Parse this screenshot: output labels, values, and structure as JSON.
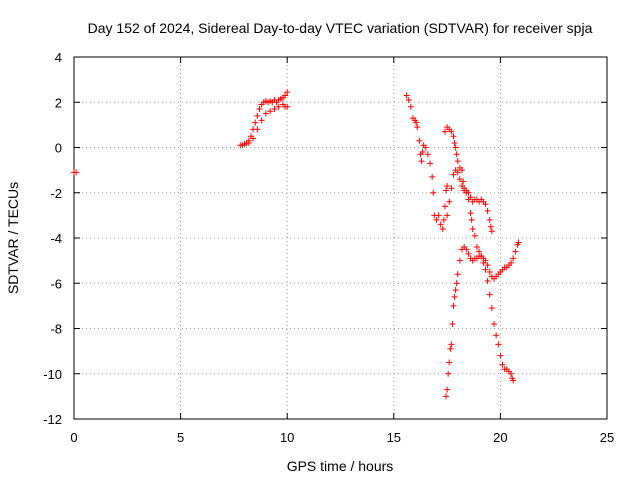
{
  "chart_data": {
    "type": "scatter",
    "title": "Day 152 of 2024, Sidereal Day-to-day VTEC variation (SDTVAR) for receiver spja",
    "xlabel": "GPS time / hours",
    "ylabel": "SDTVAR / TECUs",
    "xlim": [
      0,
      25
    ],
    "ylim": [
      -12,
      4
    ],
    "xticks": [
      0,
      5,
      10,
      15,
      20,
      25
    ],
    "yticks": [
      -12,
      -10,
      -8,
      -6,
      -4,
      -2,
      0,
      2,
      4
    ],
    "grid": true,
    "marker": "+",
    "colors": {
      "series": "#ff0000",
      "axes": "#000000",
      "grid": "#a0a0a0"
    },
    "series": [
      {
        "name": "SDTVAR",
        "points": [
          [
            0.0,
            -1.1
          ],
          [
            0.1,
            -1.1
          ],
          [
            7.8,
            0.1
          ],
          [
            7.9,
            0.1
          ],
          [
            8.0,
            0.15
          ],
          [
            8.1,
            0.2
          ],
          [
            8.2,
            0.3
          ],
          [
            8.3,
            0.5
          ],
          [
            8.4,
            0.8
          ],
          [
            8.5,
            1.1
          ],
          [
            8.6,
            1.4
          ],
          [
            8.7,
            1.7
          ],
          [
            8.8,
            1.9
          ],
          [
            8.9,
            2.0
          ],
          [
            9.0,
            2.05
          ],
          [
            9.1,
            2.0
          ],
          [
            9.2,
            2.05
          ],
          [
            9.3,
            2.0
          ],
          [
            9.4,
            2.1
          ],
          [
            9.5,
            2.0
          ],
          [
            9.6,
            2.1
          ],
          [
            9.7,
            2.15
          ],
          [
            9.8,
            2.2
          ],
          [
            9.9,
            2.3
          ],
          [
            10.0,
            2.45
          ],
          [
            8.2,
            0.2
          ],
          [
            8.4,
            0.4
          ],
          [
            8.6,
            0.8
          ],
          [
            8.8,
            1.2
          ],
          [
            9.0,
            1.5
          ],
          [
            9.2,
            1.6
          ],
          [
            9.4,
            1.7
          ],
          [
            9.6,
            1.8
          ],
          [
            9.8,
            1.9
          ],
          [
            9.9,
            1.8
          ],
          [
            10.0,
            1.8
          ],
          [
            15.6,
            2.3
          ],
          [
            15.7,
            2.1
          ],
          [
            15.8,
            1.8
          ],
          [
            15.9,
            1.3
          ],
          [
            16.0,
            1.2
          ],
          [
            16.05,
            1.1
          ],
          [
            16.1,
            0.9
          ],
          [
            16.2,
            0.3
          ],
          [
            16.25,
            -0.3
          ],
          [
            16.3,
            -0.6
          ],
          [
            16.35,
            -0.2
          ],
          [
            16.4,
            0.1
          ],
          [
            16.5,
            0.0
          ],
          [
            16.6,
            -0.3
          ],
          [
            16.7,
            -0.7
          ],
          [
            16.8,
            -1.3
          ],
          [
            16.85,
            -2.0
          ],
          [
            16.9,
            -3.0
          ],
          [
            17.0,
            -3.2
          ],
          [
            17.1,
            -3.0
          ],
          [
            17.2,
            -3.4
          ],
          [
            17.3,
            -3.6
          ],
          [
            17.35,
            -3.2
          ],
          [
            17.4,
            -2.6
          ],
          [
            17.45,
            -1.9
          ],
          [
            17.5,
            -1.7
          ],
          [
            17.4,
            0.7
          ],
          [
            17.5,
            0.9
          ],
          [
            17.6,
            0.8
          ],
          [
            17.7,
            0.7
          ],
          [
            17.8,
            0.5
          ],
          [
            17.85,
            0.2
          ],
          [
            17.9,
            0.0
          ],
          [
            17.95,
            -0.3
          ],
          [
            18.0,
            -0.6
          ],
          [
            18.1,
            -0.9
          ],
          [
            18.2,
            -1.0
          ],
          [
            18.25,
            -1.5
          ],
          [
            18.3,
            -1.8
          ],
          [
            18.4,
            -2.0
          ],
          [
            18.5,
            -2.3
          ],
          [
            18.6,
            -2.9
          ],
          [
            18.65,
            -3.2
          ],
          [
            18.7,
            -3.6
          ],
          [
            18.8,
            -3.9
          ],
          [
            18.9,
            -4.4
          ],
          [
            19.0,
            -4.6
          ],
          [
            19.1,
            -4.8
          ],
          [
            19.2,
            -5.1
          ],
          [
            19.3,
            -5.4
          ],
          [
            19.4,
            -5.9
          ],
          [
            19.5,
            -6.5
          ],
          [
            19.6,
            -7.1
          ],
          [
            19.7,
            -7.8
          ],
          [
            19.8,
            -8.3
          ],
          [
            19.9,
            -8.7
          ],
          [
            20.0,
            -9.2
          ],
          [
            20.1,
            -9.6
          ],
          [
            20.2,
            -9.8
          ],
          [
            20.3,
            -9.8
          ],
          [
            20.4,
            -9.9
          ],
          [
            20.5,
            -10.0
          ],
          [
            20.55,
            -10.2
          ],
          [
            20.6,
            -10.3
          ],
          [
            17.5,
            -3.0
          ],
          [
            17.6,
            -2.4
          ],
          [
            17.7,
            -1.8
          ],
          [
            17.8,
            -1.2
          ],
          [
            17.9,
            -1.0
          ],
          [
            18.0,
            -1.1
          ],
          [
            18.1,
            -1.4
          ],
          [
            18.2,
            -1.7
          ],
          [
            18.3,
            -1.9
          ],
          [
            18.4,
            -1.9
          ],
          [
            18.5,
            -2.0
          ],
          [
            18.6,
            -2.2
          ],
          [
            18.7,
            -2.4
          ],
          [
            18.8,
            -2.3
          ],
          [
            18.9,
            -2.3
          ],
          [
            19.0,
            -2.4
          ],
          [
            19.1,
            -2.3
          ],
          [
            19.2,
            -2.4
          ],
          [
            19.3,
            -2.5
          ],
          [
            19.4,
            -2.8
          ],
          [
            19.5,
            -3.2
          ],
          [
            19.55,
            -3.5
          ],
          [
            19.6,
            -3.7
          ],
          [
            17.45,
            -11.0
          ],
          [
            17.5,
            -10.7
          ],
          [
            17.55,
            -10.0
          ],
          [
            17.6,
            -9.5
          ],
          [
            17.65,
            -8.9
          ],
          [
            17.7,
            -8.7
          ],
          [
            17.75,
            -7.8
          ],
          [
            17.8,
            -7.0
          ],
          [
            17.85,
            -6.6
          ],
          [
            17.9,
            -6.3
          ],
          [
            17.95,
            -6.0
          ],
          [
            18.0,
            -5.6
          ],
          [
            18.1,
            -5.0
          ],
          [
            18.2,
            -4.5
          ],
          [
            18.3,
            -4.4
          ],
          [
            18.4,
            -4.5
          ],
          [
            18.5,
            -4.7
          ],
          [
            18.6,
            -4.9
          ],
          [
            18.7,
            -5.0
          ],
          [
            18.8,
            -4.9
          ],
          [
            18.9,
            -4.9
          ],
          [
            19.0,
            -4.8
          ],
          [
            19.1,
            -4.8
          ],
          [
            19.2,
            -4.9
          ],
          [
            19.3,
            -5.0
          ],
          [
            19.4,
            -5.2
          ],
          [
            19.5,
            -5.5
          ],
          [
            19.6,
            -5.7
          ],
          [
            19.7,
            -5.8
          ],
          [
            19.8,
            -5.7
          ],
          [
            19.9,
            -5.6
          ],
          [
            20.0,
            -5.5
          ],
          [
            20.1,
            -5.4
          ],
          [
            20.2,
            -5.3
          ],
          [
            20.3,
            -5.3
          ],
          [
            20.4,
            -5.2
          ],
          [
            20.5,
            -5.1
          ],
          [
            20.6,
            -4.9
          ],
          [
            20.7,
            -4.6
          ],
          [
            20.8,
            -4.3
          ],
          [
            20.85,
            -4.2
          ]
        ]
      }
    ]
  }
}
